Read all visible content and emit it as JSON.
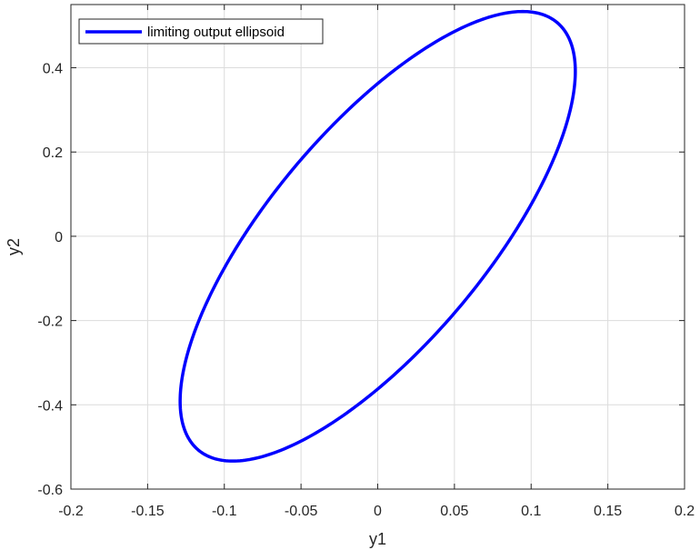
{
  "chart_data": {
    "type": "line",
    "title": "",
    "xlabel": "y1",
    "ylabel": "y2",
    "xlim": [
      -0.2,
      0.2
    ],
    "ylim": [
      -0.6,
      0.55
    ],
    "xticks": [
      -0.2,
      -0.15,
      -0.1,
      -0.05,
      0,
      0.05,
      0.1,
      0.15,
      0.2
    ],
    "xtick_labels": [
      "-0.2",
      "-0.15",
      "-0.1",
      "-0.05",
      "0",
      "0.05",
      "0.1",
      "0.15",
      "0.2"
    ],
    "yticks": [
      -0.6,
      -0.4,
      -0.2,
      0,
      0.2,
      0.4
    ],
    "ytick_labels": [
      "-0.6",
      "-0.4",
      "-0.2",
      "0",
      "0.2",
      "0.4"
    ],
    "grid": true,
    "legend_position": "top-left",
    "series": [
      {
        "name": "limiting output ellipsoid",
        "color": "#0000ff",
        "ellipse": {
          "center": [
            0,
            0
          ],
          "extreme_points": {
            "max_y": [
              0.0945,
              0.5335
            ],
            "max_x": [
              0.1288,
              0.39
            ],
            "min_y": [
              -0.0945,
              -0.5335
            ],
            "min_x": [
              -0.1288,
              -0.39
            ]
          }
        }
      }
    ]
  }
}
